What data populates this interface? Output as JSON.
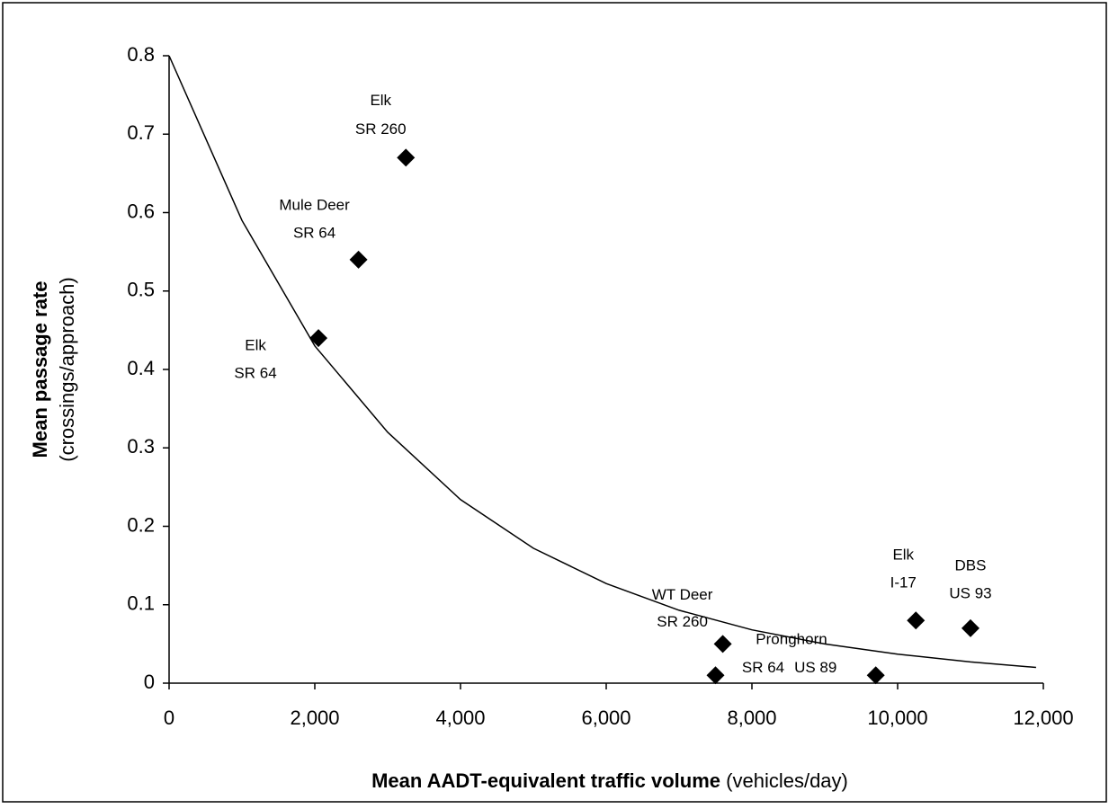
{
  "chart_data": {
    "type": "scatter",
    "y_title": [
      "Mean passage rate",
      "(crossings/approach)"
    ],
    "x_title": [
      "Mean AADT-equivalent traffic volume",
      "(vehicles/day)"
    ],
    "xlim": [
      0,
      12000
    ],
    "xticks": [
      0,
      {
        "value": 2000,
        "label": "2,000"
      },
      {
        "value": 4000,
        "label": "4,000"
      },
      {
        "value": 6000,
        "label": "6,000"
      },
      {
        "value": 8000,
        "label": "8,000"
      },
      {
        "value": 10000,
        "label": "10,000"
      },
      {
        "value": 12000,
        "label": "12,000"
      }
    ],
    "ylim": [
      0,
      0.8
    ],
    "yticks": [
      0,
      0.1,
      0.2,
      0.3,
      0.4,
      0.5,
      0.6,
      0.7,
      0.8
    ],
    "grid": false,
    "color": "#000000",
    "points": {
      "x": [
        2050,
        2600,
        3250,
        7600,
        7500,
        9700,
        10250,
        11000
      ],
      "values": [
        0.44,
        0.54,
        0.67,
        0.05,
        0.01,
        0.01,
        0.08,
        0.07
      ],
      "labels": [
        [
          "Elk",
          "SR 64"
        ],
        [
          "Mule Deer",
          "SR 64"
        ],
        [
          "Elk",
          "SR 260"
        ],
        [
          "WT Deer",
          "SR 260"
        ],
        [
          "SR 64"
        ],
        [
          "US 89"
        ],
        [
          "Elk",
          "I-17"
        ],
        [
          "DBS",
          "US 93"
        ]
      ]
    },
    "annotation": "Pronghorn",
    "curve": {
      "x": [
        0,
        1000,
        2000,
        3000,
        4000,
        5000,
        6000,
        7000,
        8000,
        9000,
        10000,
        11000,
        11900
      ],
      "values": [
        0.8,
        0.59,
        0.43,
        0.32,
        0.234,
        0.172,
        0.127,
        0.093,
        0.068,
        0.05,
        0.037,
        0.027,
        0.02
      ]
    }
  }
}
